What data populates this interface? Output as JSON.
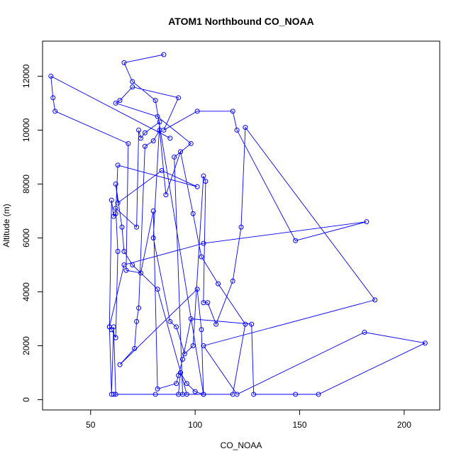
{
  "chart_data": {
    "type": "scatter",
    "title": "ATOM1 Northbound CO_NOAA",
    "xlabel": "CO_NOAA",
    "ylabel": "Altitude (m)",
    "xlim": [
      27,
      217
    ],
    "ylim": [
      -380,
      13300
    ],
    "xticks": [
      50,
      100,
      150,
      200
    ],
    "yticks": [
      0,
      2000,
      4000,
      6000,
      8000,
      10000,
      12000
    ],
    "grid": false,
    "legend": "none",
    "point_color": "#0000ff",
    "line_color": "#0000ff",
    "connected": true,
    "series": [
      {
        "x": [
          85,
          66,
          70,
          81,
          104,
          94,
          90,
          98,
          82,
          62,
          64,
          70,
          92,
          85,
          101,
          118,
          120,
          148,
          182,
          104,
          66,
          59,
          60,
          61,
          62,
          63,
          101,
          84,
          63,
          62,
          65,
          66,
          70,
          82,
          96,
          81,
          92,
          93,
          96,
          100,
          104,
          103,
          101,
          64,
          71,
          72,
          73,
          76,
          80,
          83,
          86,
          93,
          99,
          103,
          111,
          124,
          118,
          61,
          62,
          61,
          60,
          59,
          60,
          62,
          63,
          62,
          72,
          73,
          74,
          76,
          83,
          80,
          88,
          91,
          95,
          99,
          104,
          105,
          104,
          106,
          110,
          118,
          122,
          124,
          186,
          104,
          120,
          181,
          210,
          159,
          148,
          128,
          127,
          98,
          94,
          92,
          91,
          82,
          80,
          74,
          67,
          68,
          33,
          32,
          31,
          88
        ],
        "y": [
          12800,
          12500,
          11800,
          11100,
          200,
          200,
          9000,
          9500,
          10500,
          11000,
          11100,
          11600,
          11200,
          10000,
          10700,
          10700,
          10000,
          5900,
          6600,
          5800,
          5000,
          2700,
          7400,
          6800,
          6900,
          8700,
          7900,
          8500,
          7300,
          8000,
          6400,
          5500,
          5000,
          4100,
          200,
          200,
          200,
          1000,
          600,
          300,
          200,
          2600,
          4100,
          1300,
          1900,
          2900,
          3400,
          9400,
          9600,
          10000,
          7600,
          9200,
          6900,
          5300,
          4300,
          2800,
          200,
          200,
          200,
          2700,
          200,
          2700,
          2600,
          2300,
          5500,
          7100,
          6400,
          10000,
          9700,
          9900,
          10300,
          6000,
          2900,
          2700,
          1700,
          2000,
          8300,
          8100,
          3600,
          3600,
          2800,
          4400,
          6400,
          10100,
          3700,
          2000,
          200,
          2500,
          2100,
          200,
          200,
          200,
          2800,
          3000,
          1500,
          900,
          600,
          400,
          7000,
          4700,
          4800,
          9500,
          10700,
          11200,
          12000,
          9700
        ]
      }
    ]
  }
}
